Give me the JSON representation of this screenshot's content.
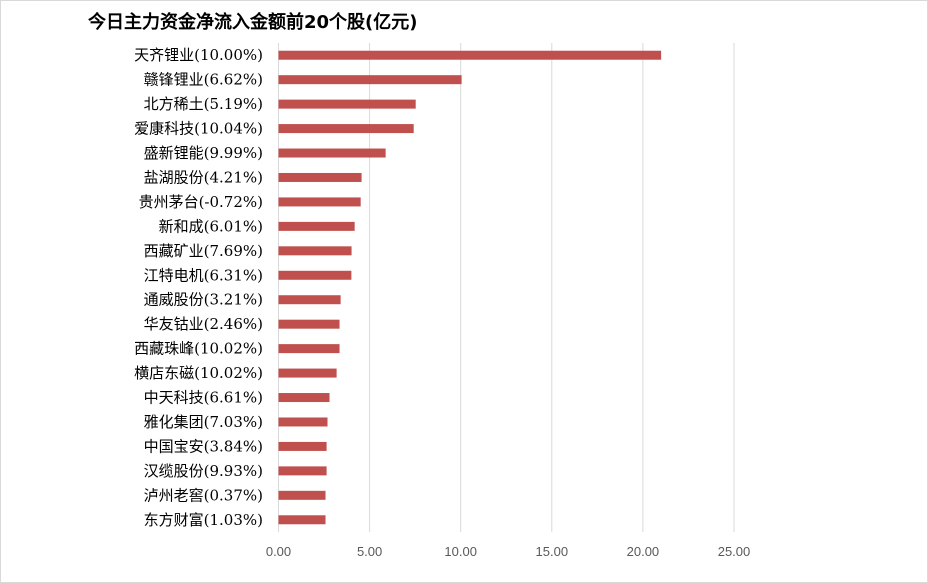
{
  "chart_data": {
    "type": "bar",
    "orientation": "horizontal",
    "title": "今日主力资金净流入金额前20个股(亿元)",
    "xlabel": "",
    "ylabel": "",
    "xlim": [
      0,
      25
    ],
    "x_ticks": [
      "0.00",
      "5.00",
      "10.00",
      "15.00",
      "20.00",
      "25.00"
    ],
    "grid": "vertical",
    "bar_color": "#c0504d",
    "categories": [
      "天齐锂业(10.00%)",
      "赣锋锂业(6.62%)",
      "北方稀土(5.19%)",
      "爱康科技(10.04%)",
      "盛新锂能(9.99%)",
      "盐湖股份(4.21%)",
      "贵州茅台(-0.72%)",
      "新和成(6.01%)",
      "西藏矿业(7.69%)",
      "江特电机(6.31%)",
      "通威股份(3.21%)",
      "华友钴业(2.46%)",
      "西藏珠峰(10.02%)",
      "横店东磁(10.02%)",
      "中天科技(6.61%)",
      "雅化集团(7.03%)",
      "中国宝安(3.84%)",
      "汉缆股份(9.93%)",
      "泸州老窖(0.37%)",
      "东方财富(1.03%)"
    ],
    "values": [
      21.0,
      10.05,
      7.53,
      7.42,
      5.88,
      4.56,
      4.51,
      4.18,
      4.01,
      4.0,
      3.41,
      3.35,
      3.35,
      3.19,
      2.8,
      2.69,
      2.64,
      2.64,
      2.58,
      2.58
    ]
  }
}
